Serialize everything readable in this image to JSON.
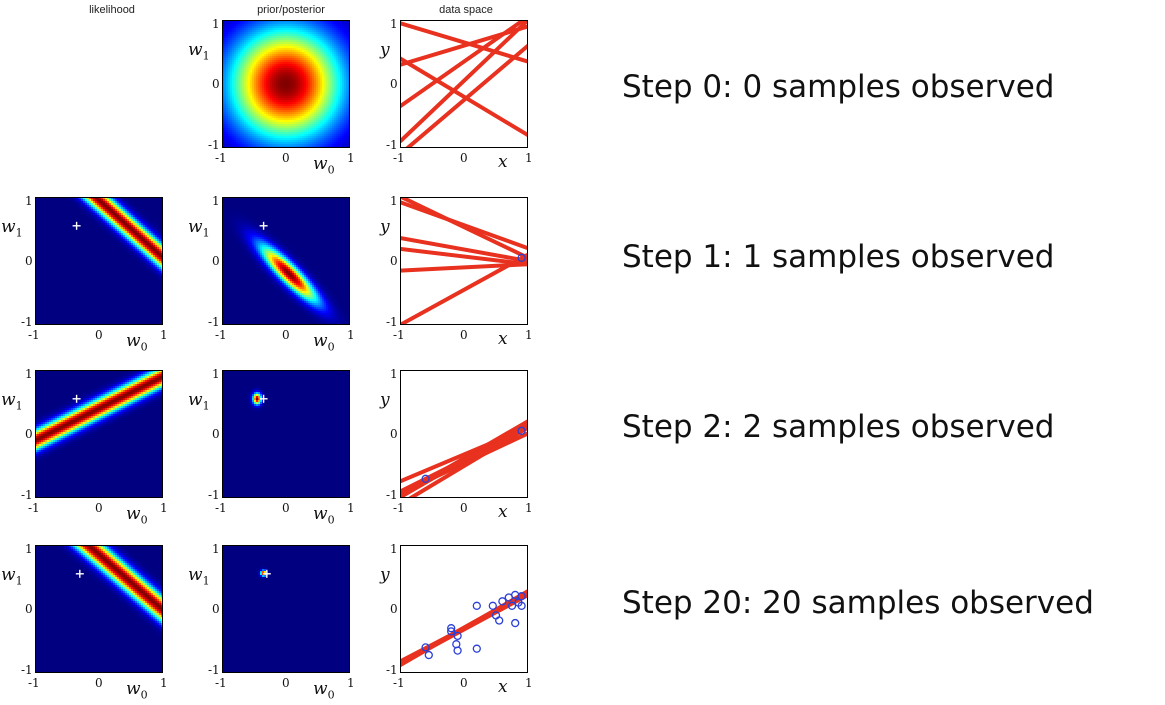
{
  "columns": {
    "likelihood": "likelihood",
    "posterior": "prior/posterior",
    "data": "data space"
  },
  "axis": {
    "tick_neg": "-1",
    "tick_zero": "0",
    "tick_pos": "1",
    "w0_main": "w",
    "w0_sub": "0",
    "w1_main": "w",
    "w1_sub": "1",
    "x": "x",
    "y": "y"
  },
  "colors": {
    "line": "#e8311e",
    "point": "#2a3fd6",
    "marker": "#ffffff",
    "frame": "#000000"
  },
  "rows": [
    {
      "label": "Step 0: 0 samples observed",
      "likelihood": null,
      "posterior": {
        "mean": [
          0,
          0
        ],
        "sd": [
          0.6,
          0.6
        ],
        "rho": 0
      },
      "data_lines": [
        [
          0.35,
          0.7
        ],
        [
          0.65,
          -0.3
        ],
        [
          -0.2,
          -0.6
        ],
        [
          0.6,
          0.3
        ],
        [
          0.05,
          0.95
        ],
        [
          -0.25,
          0.85
        ]
      ],
      "points": []
    },
    {
      "label": "Step 1: 1 samples observed",
      "likelihood": {
        "a": 0.9,
        "c": 0.95,
        "w": 0.13
      },
      "posterior": {
        "mean": [
          0.05,
          -0.2
        ],
        "sd": [
          0.3,
          0.3
        ],
        "rho": -0.9
      },
      "marker": [
        -0.35,
        0.55
      ],
      "data_lines": [
        [
          0.53,
          -0.48
        ],
        [
          0.18,
          -0.18
        ],
        [
          0.07,
          -0.12
        ],
        [
          0.56,
          -0.36
        ],
        [
          -0.45,
          0.55
        ],
        [
          -0.1,
          0.05
        ]
      ],
      "points": [
        [
          0.9,
          0.05
        ]
      ]
    },
    {
      "label": "Step 2: 2 samples observed",
      "likelihood": {
        "a": -0.5,
        "c": 0.4,
        "w": 0.11
      },
      "posterior": {
        "mean": [
          -0.45,
          0.55
        ],
        "sd": [
          0.045,
          0.06
        ],
        "rho": 0
      },
      "marker": [
        -0.35,
        0.55
      ],
      "data_lines": [
        [
          -0.38,
          0.58
        ],
        [
          -0.41,
          0.58
        ],
        [
          -0.46,
          0.47
        ],
        [
          -0.32,
          0.42
        ],
        [
          -0.5,
          0.6
        ],
        [
          -0.4,
          0.5
        ]
      ],
      "points": [
        [
          -0.6,
          -0.7
        ],
        [
          0.9,
          0.05
        ]
      ]
    },
    {
      "label": "Step 20: 20 samples observed",
      "likelihood": {
        "a": 0.87,
        "c": 0.85,
        "w": 0.14
      },
      "posterior": {
        "mean": [
          -0.35,
          0.56
        ],
        "sd": [
          0.03,
          0.03
        ],
        "rho": 0
      },
      "marker": [
        -0.3,
        0.55
      ],
      "data_lines": [
        [
          -0.31,
          0.55
        ],
        [
          -0.29,
          0.56
        ],
        [
          -0.3,
          0.52
        ],
        [
          -0.32,
          0.54
        ],
        [
          -0.3,
          0.58
        ],
        [
          -0.31,
          0.53
        ]
      ],
      "points": [
        [
          -0.6,
          -0.6
        ],
        [
          -0.55,
          -0.72
        ],
        [
          -0.2,
          -0.3
        ],
        [
          -0.2,
          -0.35
        ],
        [
          -0.1,
          -0.42
        ],
        [
          -0.1,
          -0.65
        ],
        [
          -0.12,
          -0.55
        ],
        [
          0.2,
          0.05
        ],
        [
          0.2,
          -0.62
        ],
        [
          0.45,
          0.05
        ],
        [
          0.55,
          -0.18
        ],
        [
          0.6,
          0.12
        ],
        [
          0.7,
          0.18
        ],
        [
          0.75,
          0.05
        ],
        [
          0.8,
          -0.22
        ],
        [
          0.8,
          0.22
        ],
        [
          0.85,
          0.1
        ],
        [
          0.9,
          0.05
        ],
        [
          0.9,
          0.2
        ],
        [
          0.5,
          -0.1
        ]
      ]
    }
  ]
}
